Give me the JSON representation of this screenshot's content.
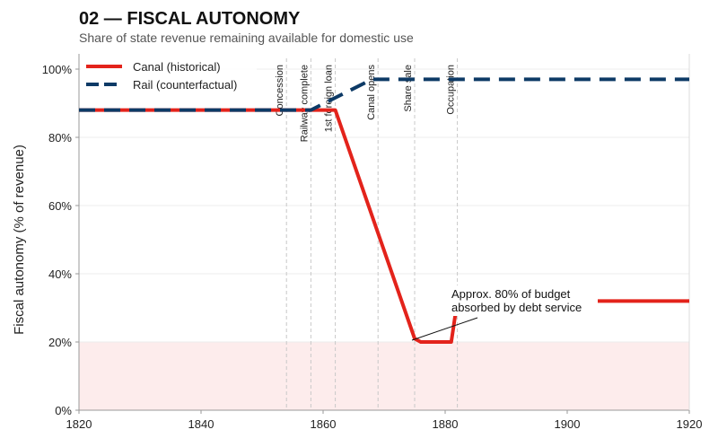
{
  "header": {
    "title": "02 — FISCAL AUTONOMY",
    "subtitle": "Share of state revenue remaining available for domestic use"
  },
  "chart_data": {
    "type": "line",
    "title": "02 — FISCAL AUTONOMY",
    "subtitle": "Share of state revenue remaining available for domestic use",
    "xlabel": "",
    "ylabel": "Fiscal autonomy (% of revenue)",
    "xlim": [
      1820,
      1920
    ],
    "ylim": [
      0,
      105
    ],
    "xticks": [
      1820,
      1840,
      1860,
      1880,
      1900,
      1920
    ],
    "yticks": [
      0,
      20,
      40,
      60,
      80,
      100
    ],
    "ytick_labels": [
      "0%",
      "20%",
      "40%",
      "60%",
      "80%",
      "100%"
    ],
    "grid": "horizontal",
    "legend": "top-left",
    "shaded_band": {
      "from": 0,
      "to": 20,
      "color": "#fdecec"
    },
    "series": [
      {
        "name": "Canal (historical)",
        "style": "solid",
        "color": "#e3231b",
        "points": [
          [
            1820,
            88
          ],
          [
            1862,
            88
          ],
          [
            1875,
            21
          ],
          [
            1876,
            20
          ],
          [
            1881,
            20
          ],
          [
            1882,
            32
          ],
          [
            1920,
            32
          ]
        ]
      },
      {
        "name": "Rail (counterfactual)",
        "style": "dashed",
        "color": "#0d3a66",
        "points": [
          [
            1820,
            88
          ],
          [
            1858,
            88
          ],
          [
            1868,
            97
          ],
          [
            1920,
            97
          ]
        ]
      }
    ],
    "events": [
      {
        "year": 1854,
        "label": "Concession"
      },
      {
        "year": 1858,
        "label": "Railway complete"
      },
      {
        "year": 1862,
        "label": "1st foreign loan"
      },
      {
        "year": 1869,
        "label": "Canal opens"
      },
      {
        "year": 1875,
        "label": "Share sale"
      },
      {
        "year": 1882,
        "label": "Occupation"
      }
    ],
    "annotation": {
      "text_lines": [
        "Approx. 80% of budget",
        "absorbed by debt service"
      ],
      "target": [
        1875,
        20
      ],
      "text_at": [
        1882,
        30
      ]
    }
  }
}
